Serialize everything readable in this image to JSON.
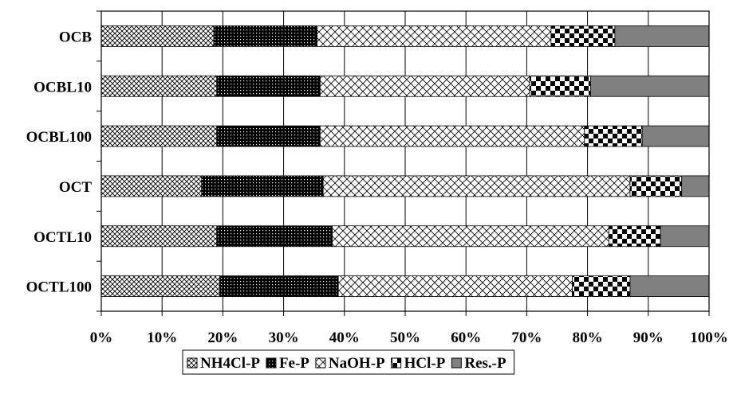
{
  "chart_data": {
    "type": "bar",
    "orientation": "horizontal",
    "stacked": "percent",
    "title": "",
    "xlabel": "",
    "ylabel": "",
    "xlim": [
      0,
      100
    ],
    "x_ticks": [
      "0%",
      "10%",
      "20%",
      "30%",
      "40%",
      "50%",
      "60%",
      "70%",
      "80%",
      "90%",
      "100%"
    ],
    "categories": [
      "OCB",
      "OCBL10",
      "OCBL100",
      "OCT",
      "OCTL10",
      "OCTL100"
    ],
    "series": [
      {
        "name": "NH4Cl-P",
        "values": [
          18.5,
          19.0,
          19.0,
          16.5,
          19.0,
          19.5
        ]
      },
      {
        "name": "Fe-P",
        "values": [
          17.0,
          17.0,
          17.0,
          20.0,
          19.0,
          19.5
        ]
      },
      {
        "name": "NaOH-P",
        "values": [
          38.5,
          34.5,
          43.5,
          50.5,
          45.5,
          38.5
        ]
      },
      {
        "name": "HCl-P",
        "values": [
          10.5,
          10.0,
          9.5,
          8.5,
          8.5,
          9.5
        ]
      },
      {
        "name": "Res.-P",
        "values": [
          15.5,
          19.5,
          11.0,
          4.5,
          8.0,
          13.0
        ]
      }
    ],
    "grid": {
      "vertical": true,
      "horizontal": false
    },
    "legend_position": "bottom",
    "patterns": [
      "crosshatch-fine",
      "black-dots",
      "diagonal-cross-white",
      "checkerboard",
      "solid-gray"
    ],
    "colors": {
      "res_p": "#808080",
      "ink": "#000000",
      "background": "#ffffff"
    }
  }
}
